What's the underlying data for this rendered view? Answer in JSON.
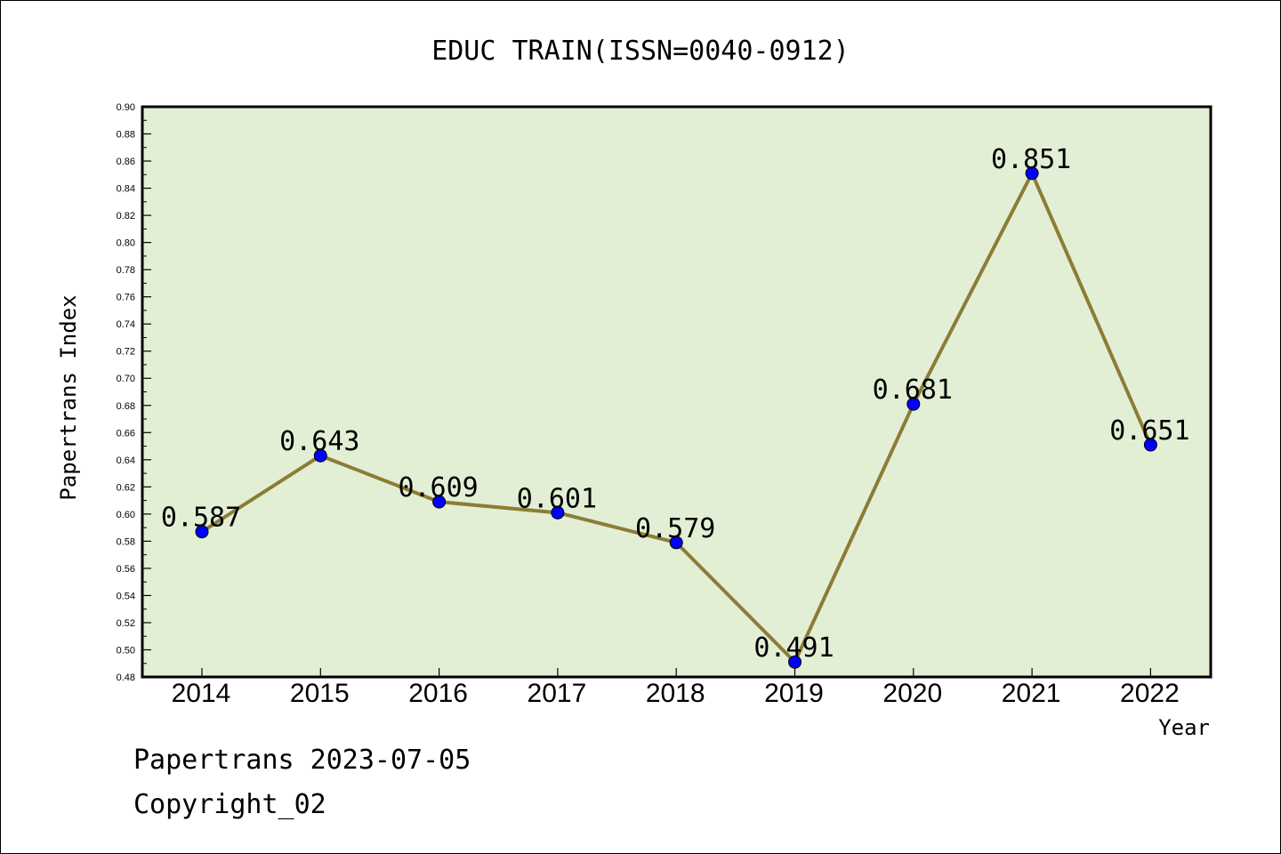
{
  "chart_data": {
    "type": "line",
    "title": "EDUC TRAIN(ISSN=0040-0912)",
    "xlabel": "Year",
    "ylabel": "Papertrans Index",
    "categories": [
      "2014",
      "2015",
      "2016",
      "2017",
      "2018",
      "2019",
      "2020",
      "2021",
      "2022"
    ],
    "series": [
      {
        "values": [
          0.587,
          0.643,
          0.609,
          0.601,
          0.579,
          0.491,
          0.681,
          0.851,
          0.651
        ],
        "labels": [
          "0.587",
          "0.643",
          "0.609",
          "0.601",
          "0.579",
          "0.491",
          "0.681",
          "0.851",
          "0.651"
        ],
        "line_color": "#8b7d35",
        "marker_color": "#0000ff"
      }
    ],
    "ylim": [
      0.48,
      0.9
    ],
    "yticks": [
      "0.48",
      "0.50",
      "0.52",
      "0.54",
      "0.56",
      "0.58",
      "0.60",
      "0.62",
      "0.64",
      "0.66",
      "0.68",
      "0.70",
      "0.72",
      "0.74",
      "0.76",
      "0.78",
      "0.80",
      "0.82",
      "0.84",
      "0.86",
      "0.88",
      "0.90"
    ],
    "plot_background": "#e2efd5",
    "grid": false,
    "legend": "none"
  },
  "footer": {
    "line1": "Papertrans 2023-07-05",
    "line2": "Copyright_02"
  }
}
